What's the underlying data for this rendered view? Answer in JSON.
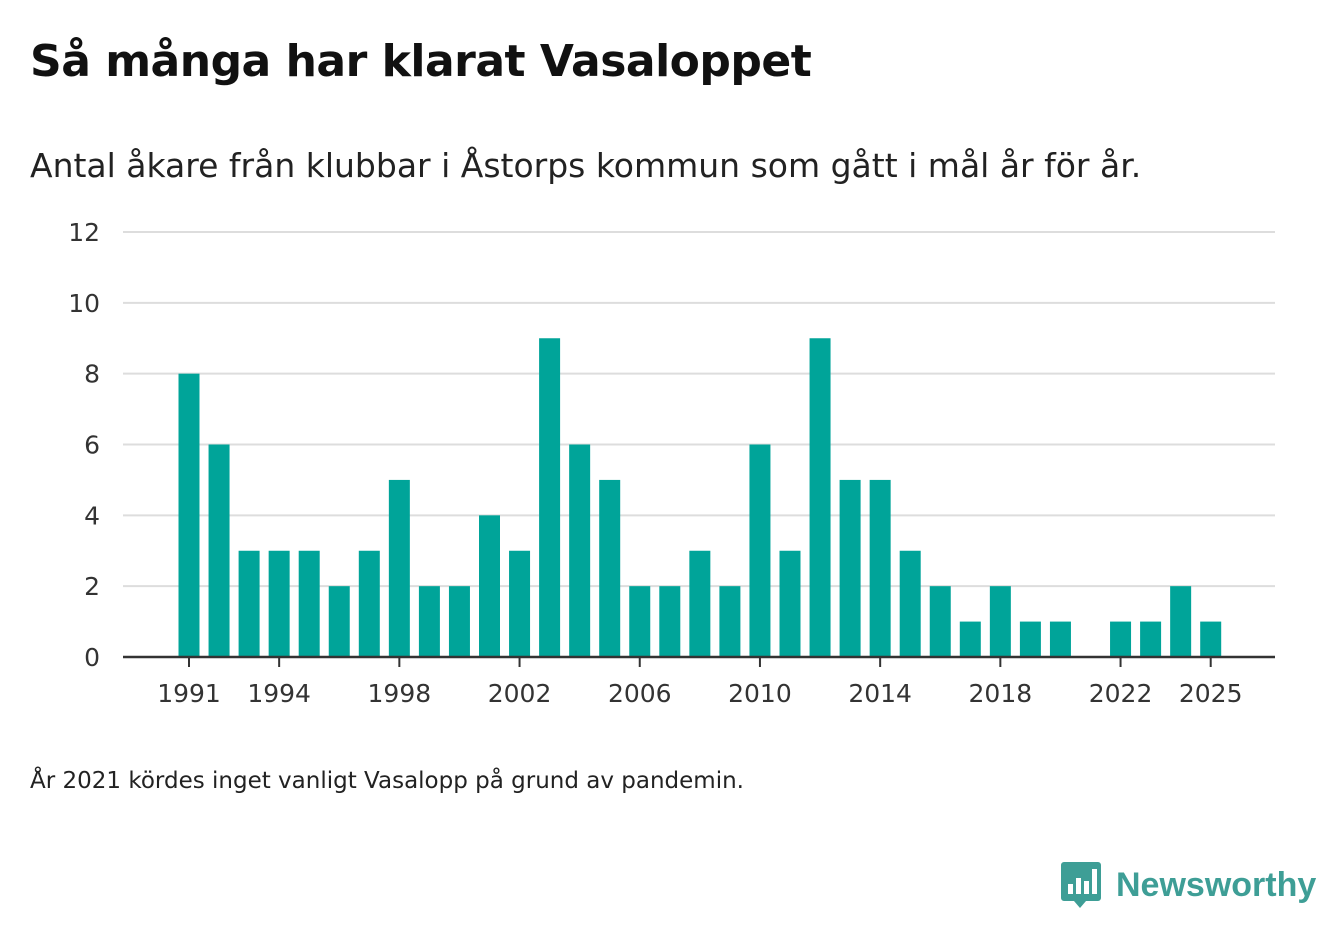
{
  "title": "Så många har klarat Vasaloppet",
  "subtitle": "Antal åkare från klubbar i Åstorps kommun som gått i mål år för år.",
  "note": "År 2021 kördes inget vanligt Vasalopp på grund av pandemin.",
  "brand": {
    "name": "Newsworthy",
    "icon": "newsworthy-logo-icon",
    "color": "#3e9e96"
  },
  "chart_data": {
    "type": "bar",
    "title": "Så många har klarat Vasaloppet",
    "xlabel": "",
    "ylabel": "",
    "color": "#00a499",
    "categories": [
      1991,
      1992,
      1993,
      1994,
      1995,
      1996,
      1997,
      1998,
      1999,
      2000,
      2001,
      2002,
      2003,
      2004,
      2005,
      2006,
      2007,
      2008,
      2009,
      2010,
      2011,
      2012,
      2013,
      2014,
      2015,
      2016,
      2017,
      2018,
      2019,
      2020,
      2021,
      2022,
      2023,
      2024,
      2025
    ],
    "values": [
      8,
      6,
      3,
      3,
      3,
      2,
      3,
      5,
      2,
      2,
      4,
      3,
      9,
      6,
      5,
      2,
      2,
      3,
      2,
      6,
      3,
      9,
      5,
      5,
      3,
      2,
      1,
      2,
      1,
      1,
      null,
      1,
      1,
      2,
      1
    ],
    "xticks": [
      "1991",
      "1994",
      "1998",
      "2002",
      "2006",
      "2010",
      "2014",
      "2018",
      "2022",
      "2025"
    ],
    "ylim": [
      0,
      12
    ],
    "yticks": [
      "0",
      "2",
      "4",
      "6",
      "8",
      "10",
      "12"
    ],
    "grid": true
  }
}
